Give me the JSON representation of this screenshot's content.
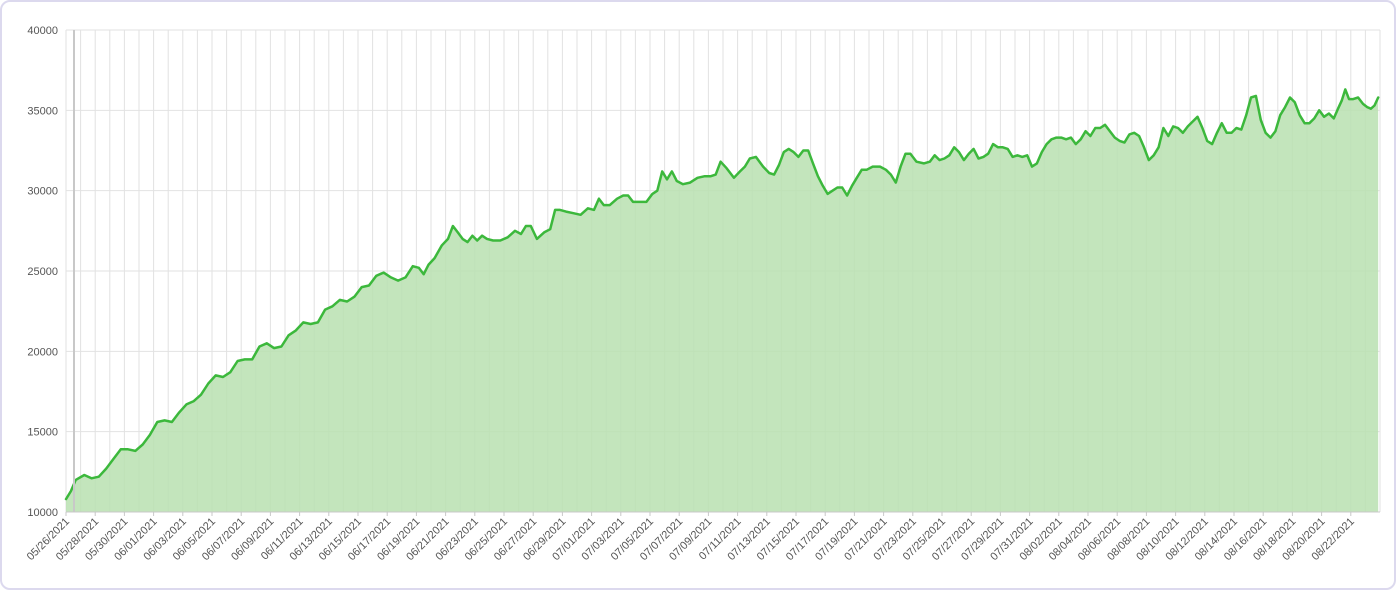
{
  "chart_data": {
    "type": "area",
    "title": "",
    "xlabel": "",
    "ylabel": "",
    "ylim": [
      10000,
      40000
    ],
    "yticks": [
      10000,
      15000,
      20000,
      25000,
      30000,
      35000,
      40000
    ],
    "xlim": [
      "2021-05-26",
      "2021-08-23"
    ],
    "xtick_labels": [
      "05/26/2021",
      "05/28/2021",
      "05/30/2021",
      "06/01/2021",
      "06/03/2021",
      "06/05/2021",
      "06/07/2021",
      "06/09/2021",
      "06/11/2021",
      "06/13/2021",
      "06/15/2021",
      "06/17/2021",
      "06/19/2021",
      "06/21/2021",
      "06/23/2021",
      "06/25/2021",
      "06/27/2021",
      "06/29/2021",
      "07/01/2021",
      "07/03/2021",
      "07/05/2021",
      "07/07/2021",
      "07/09/2021",
      "07/11/2021",
      "07/13/2021",
      "07/15/2021",
      "07/17/2021",
      "07/19/2021",
      "07/21/2021",
      "07/23/2021",
      "07/25/2021",
      "07/27/2021",
      "07/29/2021",
      "07/31/2021",
      "08/02/2021",
      "08/04/2021",
      "08/06/2021",
      "08/08/2021",
      "08/10/2021",
      "08/12/2021",
      "08/14/2021",
      "08/16/2021",
      "08/18/2021",
      "08/20/2021",
      "08/22/2021"
    ],
    "grid": true,
    "legend": false,
    "colors": {
      "line": "#3cb83c",
      "fill": "#b8e0b0",
      "grid": "#e2e2e2",
      "axis": "#c8c8c8"
    },
    "series": [
      {
        "points": [
          [
            "2021-05-26",
            10800
          ],
          [
            "2021-05-26",
            11300
          ],
          [
            "2021-05-26",
            12000
          ],
          [
            "2021-05-27",
            12300
          ],
          [
            "2021-05-27",
            12100
          ],
          [
            "2021-05-28",
            12200
          ],
          [
            "2021-05-28",
            12700
          ],
          [
            "2021-05-29",
            13300
          ],
          [
            "2021-05-29",
            13900
          ],
          [
            "2021-05-30",
            13900
          ],
          [
            "2021-05-30",
            13800
          ],
          [
            "2021-05-31",
            14200
          ],
          [
            "2021-05-31",
            14800
          ],
          [
            "2021-06-01",
            15600
          ],
          [
            "2021-06-01",
            15700
          ],
          [
            "2021-06-02",
            15600
          ],
          [
            "2021-06-02",
            16200
          ],
          [
            "2021-06-03",
            16700
          ],
          [
            "2021-06-03",
            16900
          ],
          [
            "2021-06-04",
            17300
          ],
          [
            "2021-06-04",
            18000
          ],
          [
            "2021-06-05",
            18500
          ],
          [
            "2021-06-05",
            18400
          ],
          [
            "2021-06-06",
            18700
          ],
          [
            "2021-06-06",
            19400
          ],
          [
            "2021-06-07",
            19500
          ],
          [
            "2021-06-07",
            19500
          ],
          [
            "2021-06-08",
            20300
          ],
          [
            "2021-06-08",
            20500
          ],
          [
            "2021-06-09",
            20200
          ],
          [
            "2021-06-09",
            20300
          ],
          [
            "2021-06-10",
            21000
          ],
          [
            "2021-06-10",
            21300
          ],
          [
            "2021-06-11",
            21800
          ],
          [
            "2021-06-11",
            21700
          ],
          [
            "2021-06-12",
            21800
          ],
          [
            "2021-06-12",
            22600
          ],
          [
            "2021-06-13",
            22800
          ],
          [
            "2021-06-13",
            23200
          ],
          [
            "2021-06-14",
            23100
          ],
          [
            "2021-06-14",
            23400
          ],
          [
            "2021-06-15",
            24000
          ],
          [
            "2021-06-15",
            24100
          ],
          [
            "2021-06-16",
            24700
          ],
          [
            "2021-06-16",
            24900
          ],
          [
            "2021-06-17",
            24600
          ],
          [
            "2021-06-17",
            24400
          ],
          [
            "2021-06-18",
            24600
          ],
          [
            "2021-06-18",
            25300
          ],
          [
            "2021-06-19",
            25200
          ],
          [
            "2021-06-19",
            24800
          ],
          [
            "2021-06-19",
            25400
          ],
          [
            "2021-06-20",
            25800
          ],
          [
            "2021-06-20",
            26600
          ],
          [
            "2021-06-21",
            27000
          ],
          [
            "2021-06-21",
            27800
          ],
          [
            "2021-06-21",
            27400
          ],
          [
            "2021-06-22",
            27000
          ],
          [
            "2021-06-22",
            26800
          ],
          [
            "2021-06-22",
            27200
          ],
          [
            "2021-06-23",
            26900
          ],
          [
            "2021-06-23",
            27200
          ],
          [
            "2021-06-23",
            27000
          ],
          [
            "2021-06-24",
            26900
          ],
          [
            "2021-06-24",
            26900
          ],
          [
            "2021-06-25",
            27100
          ],
          [
            "2021-06-25",
            27500
          ],
          [
            "2021-06-26",
            27300
          ],
          [
            "2021-06-26",
            27800
          ],
          [
            "2021-06-26",
            27800
          ],
          [
            "2021-06-27",
            27000
          ],
          [
            "2021-06-27",
            27400
          ],
          [
            "2021-06-28",
            27600
          ],
          [
            "2021-06-28",
            28800
          ],
          [
            "2021-06-28",
            28800
          ],
          [
            "2021-06-29",
            28700
          ],
          [
            "2021-06-29",
            28600
          ],
          [
            "2021-06-30",
            28500
          ],
          [
            "2021-06-30",
            28900
          ],
          [
            "2021-07-01",
            28800
          ],
          [
            "2021-07-01",
            29500
          ],
          [
            "2021-07-01",
            29100
          ],
          [
            "2021-07-02",
            29100
          ],
          [
            "2021-07-02",
            29500
          ],
          [
            "2021-07-03",
            29700
          ],
          [
            "2021-07-03",
            29700
          ],
          [
            "2021-07-03",
            29300
          ],
          [
            "2021-07-04",
            29300
          ],
          [
            "2021-07-04",
            29300
          ],
          [
            "2021-07-05",
            29800
          ],
          [
            "2021-07-05",
            30000
          ],
          [
            "2021-07-05",
            31200
          ],
          [
            "2021-07-06",
            30700
          ],
          [
            "2021-07-06",
            31200
          ],
          [
            "2021-07-06",
            30600
          ],
          [
            "2021-07-07",
            30400
          ],
          [
            "2021-07-07",
            30500
          ],
          [
            "2021-07-08",
            30800
          ],
          [
            "2021-07-08",
            30900
          ],
          [
            "2021-07-09",
            30900
          ],
          [
            "2021-07-09",
            31000
          ],
          [
            "2021-07-09",
            31800
          ],
          [
            "2021-07-10",
            31400
          ],
          [
            "2021-07-10",
            30800
          ],
          [
            "2021-07-11",
            31200
          ],
          [
            "2021-07-11",
            31500
          ],
          [
            "2021-07-11",
            32000
          ],
          [
            "2021-07-12",
            32100
          ],
          [
            "2021-07-12",
            31500
          ],
          [
            "2021-07-13",
            31100
          ],
          [
            "2021-07-13",
            31000
          ],
          [
            "2021-07-13",
            31600
          ],
          [
            "2021-07-14",
            32400
          ],
          [
            "2021-07-14",
            32600
          ],
          [
            "2021-07-14",
            32400
          ],
          [
            "2021-07-15",
            32100
          ],
          [
            "2021-07-15",
            32500
          ],
          [
            "2021-07-15",
            32500
          ],
          [
            "2021-07-16",
            31700
          ],
          [
            "2021-07-16",
            30900
          ],
          [
            "2021-07-16",
            30300
          ],
          [
            "2021-07-17",
            29800
          ],
          [
            "2021-07-17",
            30000
          ],
          [
            "2021-07-17",
            30200
          ],
          [
            "2021-07-18",
            30200
          ],
          [
            "2021-07-18",
            29700
          ],
          [
            "2021-07-18",
            30300
          ],
          [
            "2021-07-19",
            30800
          ],
          [
            "2021-07-19",
            31300
          ],
          [
            "2021-07-19",
            31300
          ],
          [
            "2021-07-20",
            31500
          ],
          [
            "2021-07-20",
            31500
          ],
          [
            "2021-07-21",
            31300
          ],
          [
            "2021-07-21",
            31000
          ],
          [
            "2021-07-21",
            30500
          ],
          [
            "2021-07-22",
            31500
          ],
          [
            "2021-07-22",
            32300
          ],
          [
            "2021-07-22",
            32300
          ],
          [
            "2021-07-23",
            31800
          ],
          [
            "2021-07-23",
            31700
          ],
          [
            "2021-07-24",
            31800
          ],
          [
            "2021-07-24",
            32200
          ],
          [
            "2021-07-24",
            31900
          ],
          [
            "2021-07-25",
            32000
          ],
          [
            "2021-07-25",
            32200
          ],
          [
            "2021-07-25",
            32700
          ],
          [
            "2021-07-26",
            32400
          ],
          [
            "2021-07-26",
            31900
          ],
          [
            "2021-07-26",
            32300
          ],
          [
            "2021-07-27",
            32600
          ],
          [
            "2021-07-27",
            32000
          ],
          [
            "2021-07-27",
            32100
          ],
          [
            "2021-07-28",
            32300
          ],
          [
            "2021-07-28",
            32900
          ],
          [
            "2021-07-28",
            32700
          ],
          [
            "2021-07-29",
            32700
          ],
          [
            "2021-07-29",
            32600
          ],
          [
            "2021-07-29",
            32100
          ],
          [
            "2021-07-30",
            32200
          ],
          [
            "2021-07-30",
            32100
          ],
          [
            "2021-07-30",
            32200
          ],
          [
            "2021-07-31",
            31500
          ],
          [
            "2021-07-31",
            31700
          ],
          [
            "2021-07-31",
            32400
          ],
          [
            "2021-08-01",
            32900
          ],
          [
            "2021-08-01",
            33200
          ],
          [
            "2021-08-01",
            33300
          ],
          [
            "2021-08-02",
            33300
          ],
          [
            "2021-08-02",
            33200
          ],
          [
            "2021-08-02",
            33300
          ],
          [
            "2021-08-03",
            32900
          ],
          [
            "2021-08-03",
            33200
          ],
          [
            "2021-08-03",
            33700
          ],
          [
            "2021-08-04",
            33400
          ],
          [
            "2021-08-04",
            33900
          ],
          [
            "2021-08-04",
            33900
          ],
          [
            "2021-08-05",
            34100
          ],
          [
            "2021-08-05",
            33700
          ],
          [
            "2021-08-05",
            33300
          ],
          [
            "2021-08-06",
            33100
          ],
          [
            "2021-08-06",
            33000
          ],
          [
            "2021-08-06",
            33500
          ],
          [
            "2021-08-07",
            33600
          ],
          [
            "2021-08-07",
            33400
          ],
          [
            "2021-08-07",
            32700
          ],
          [
            "2021-08-08",
            31900
          ],
          [
            "2021-08-08",
            32200
          ],
          [
            "2021-08-08",
            32700
          ],
          [
            "2021-08-09",
            33900
          ],
          [
            "2021-08-09",
            33400
          ],
          [
            "2021-08-09",
            34000
          ],
          [
            "2021-08-10",
            33900
          ],
          [
            "2021-08-10",
            33600
          ],
          [
            "2021-08-10",
            34000
          ],
          [
            "2021-08-11",
            34300
          ],
          [
            "2021-08-11",
            34600
          ],
          [
            "2021-08-11",
            33900
          ],
          [
            "2021-08-12",
            33100
          ],
          [
            "2021-08-12",
            32900
          ],
          [
            "2021-08-12",
            33600
          ],
          [
            "2021-08-13",
            34200
          ],
          [
            "2021-08-13",
            33600
          ],
          [
            "2021-08-13",
            33600
          ],
          [
            "2021-08-14",
            33900
          ],
          [
            "2021-08-14",
            33800
          ],
          [
            "2021-08-14",
            34700
          ],
          [
            "2021-08-15",
            35800
          ],
          [
            "2021-08-15",
            35900
          ],
          [
            "2021-08-15",
            34400
          ],
          [
            "2021-08-16",
            33600
          ],
          [
            "2021-08-16",
            33300
          ],
          [
            "2021-08-16",
            33700
          ],
          [
            "2021-08-17",
            34700
          ],
          [
            "2021-08-17",
            35200
          ],
          [
            "2021-08-17",
            35800
          ],
          [
            "2021-08-18",
            35500
          ],
          [
            "2021-08-18",
            34700
          ],
          [
            "2021-08-18",
            34200
          ],
          [
            "2021-08-19",
            34200
          ],
          [
            "2021-08-19",
            34500
          ],
          [
            "2021-08-19",
            35000
          ],
          [
            "2021-08-20",
            34600
          ],
          [
            "2021-08-20",
            34800
          ],
          [
            "2021-08-20",
            34500
          ],
          [
            "2021-08-21",
            35100
          ],
          [
            "2021-08-21",
            35600
          ],
          [
            "2021-08-21",
            36300
          ],
          [
            "2021-08-21",
            35700
          ],
          [
            "2021-08-22",
            35700
          ],
          [
            "2021-08-22",
            35800
          ],
          [
            "2021-08-22",
            35400
          ],
          [
            "2021-08-23",
            35200
          ],
          [
            "2021-08-23",
            35100
          ],
          [
            "2021-08-23",
            35300
          ],
          [
            "2021-08-23",
            35800
          ]
        ]
      }
    ]
  }
}
